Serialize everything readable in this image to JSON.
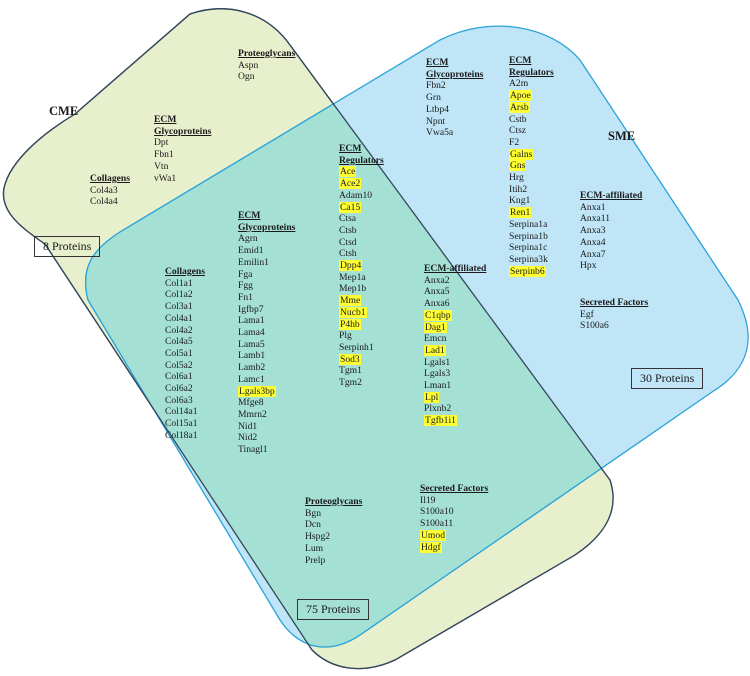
{
  "diagram": {
    "labels": {
      "left": "CME",
      "right": "SME"
    },
    "counts": {
      "left_only": "8 Proteins",
      "right_only": "30 Proteins",
      "shared": "75 Proteins"
    },
    "colors": {
      "left_fill": "#e7efcc",
      "right_fill": "#bfe5f7",
      "overlap_fill": "#a5e0d5",
      "left_stroke": "#33475d",
      "right_stroke": "#29a3d8",
      "highlight": "#ffff33"
    }
  },
  "cme_only": {
    "proteoglycans": {
      "title": "Proteoglycans",
      "items": [
        "Aspn",
        "Ogn"
      ]
    },
    "glycoproteins": {
      "title": [
        "ECM",
        "Glycoproteins"
      ],
      "items": [
        "Dpt",
        "Fbn1",
        "Vtn",
        "vWa1"
      ]
    },
    "collagens": {
      "title": "Collagens",
      "items": [
        "Col4a3",
        "Col4a4"
      ]
    }
  },
  "sme_only": {
    "glycoproteins": {
      "title": [
        "ECM",
        "Glycoproteins"
      ],
      "items": [
        "Fbn2",
        "Grn",
        "Ltbp4",
        "Npnt",
        "Vwa5a"
      ]
    },
    "regulators": {
      "title": [
        "ECM",
        "Regulators"
      ],
      "items": [
        {
          "t": "A2m",
          "h": false
        },
        {
          "t": "Apoe",
          "h": true
        },
        {
          "t": "Arsb",
          "h": true
        },
        {
          "t": "Cstb",
          "h": false
        },
        {
          "t": "Ctsz",
          "h": false
        },
        {
          "t": "F2",
          "h": false
        },
        {
          "t": "Galns",
          "h": true
        },
        {
          "t": "Gns",
          "h": true
        },
        {
          "t": "Hrg",
          "h": false
        },
        {
          "t": "Itih2",
          "h": false
        },
        {
          "t": "Kng1",
          "h": false
        },
        {
          "t": "Ren1",
          "h": true
        },
        {
          "t": "Serpina1a",
          "h": false
        },
        {
          "t": "Serpina1b",
          "h": false
        },
        {
          "t": "Serpina1c",
          "h": false
        },
        {
          "t": "Serpina3k",
          "h": false
        },
        {
          "t": "Serpinb6",
          "h": true
        }
      ]
    },
    "affiliated": {
      "title": "ECM-affiliated",
      "items": [
        "Anxa1",
        "Anxa11",
        "Anxa3",
        "Anxa4",
        "Anxa7",
        "Hpx"
      ]
    },
    "secreted": {
      "title": "Secreted Factors",
      "items": [
        "Egf",
        "S100a6"
      ]
    }
  },
  "shared": {
    "collagens": {
      "title": "Collagens",
      "items": [
        "Col1a1",
        "Col1a2",
        "Col3a1",
        "Col4a1",
        "Col4a2",
        "Col4a5",
        "Col5a1",
        "Col5a2",
        "Col6a1",
        "Col6a2",
        "Col6a3",
        "Col14a1",
        "Col15a1",
        "Col18a1"
      ]
    },
    "glycoproteins": {
      "title": [
        "ECM",
        "Glycoproteins"
      ],
      "items": [
        {
          "t": "Agrn",
          "h": false
        },
        {
          "t": "Emid1",
          "h": false
        },
        {
          "t": "Emilin1",
          "h": false
        },
        {
          "t": "Fga",
          "h": false
        },
        {
          "t": "Fgg",
          "h": false
        },
        {
          "t": "Fn1",
          "h": false
        },
        {
          "t": "Igfbp7",
          "h": false
        },
        {
          "t": "Lama1",
          "h": false
        },
        {
          "t": "Lama4",
          "h": false
        },
        {
          "t": "Lama5",
          "h": false
        },
        {
          "t": "Lamb1",
          "h": false
        },
        {
          "t": "Lamb2",
          "h": false
        },
        {
          "t": "Lamc1",
          "h": false
        },
        {
          "t": "Lgals3bp",
          "h": true
        },
        {
          "t": "Mfge8",
          "h": false
        },
        {
          "t": "Mmrn2",
          "h": false
        },
        {
          "t": "Nid1",
          "h": false
        },
        {
          "t": "Nid2",
          "h": false
        },
        {
          "t": "Tinagl1",
          "h": false
        }
      ]
    },
    "regulators": {
      "title": [
        "ECM",
        "Regulators"
      ],
      "items": [
        {
          "t": "Ace",
          "h": true
        },
        {
          "t": "Ace2",
          "h": true
        },
        {
          "t": "Adam10",
          "h": false
        },
        {
          "t": "Ca15",
          "h": true
        },
        {
          "t": "Ctsa",
          "h": false
        },
        {
          "t": "Ctsb",
          "h": false
        },
        {
          "t": "Ctsd",
          "h": false
        },
        {
          "t": "Ctsh",
          "h": false
        },
        {
          "t": "Dpp4",
          "h": true
        },
        {
          "t": "Mep1a",
          "h": false
        },
        {
          "t": "Mep1b",
          "h": false
        },
        {
          "t": "Mme",
          "h": true
        },
        {
          "t": "Nucb1",
          "h": true
        },
        {
          "t": "P4hb",
          "h": true
        },
        {
          "t": "Plg",
          "h": false
        },
        {
          "t": "Serpinh1",
          "h": false
        },
        {
          "t": "Sod3",
          "h": true
        },
        {
          "t": "Tgm1",
          "h": false
        },
        {
          "t": "Tgm2",
          "h": false
        }
      ]
    },
    "affiliated": {
      "title": "ECM-affiliated",
      "items": [
        {
          "t": "Anxa2",
          "h": false
        },
        {
          "t": "Anxa5",
          "h": false
        },
        {
          "t": "Anxa6",
          "h": false
        },
        {
          "t": "C1qbp",
          "h": true
        },
        {
          "t": "Dag1",
          "h": true
        },
        {
          "t": "Emcn",
          "h": false
        },
        {
          "t": "Lad1",
          "h": true
        },
        {
          "t": "Lgals1",
          "h": false
        },
        {
          "t": "Lgals3",
          "h": false
        },
        {
          "t": "Lman1",
          "h": false
        },
        {
          "t": "Lpl",
          "h": true
        },
        {
          "t": "Plxnb2",
          "h": false
        },
        {
          "t": "Tgfb1i1",
          "h": true
        }
      ]
    },
    "proteoglycans": {
      "title": "Proteoglycans",
      "items": [
        "Bgn",
        "Dcn",
        "Hspg2",
        "Lum",
        "Prelp"
      ]
    },
    "secreted": {
      "title": "Secreted Factors",
      "items": [
        {
          "t": "Il19",
          "h": false
        },
        {
          "t": "S100a10",
          "h": false
        },
        {
          "t": "S100a11",
          "h": false
        },
        {
          "t": "Umod",
          "h": true
        },
        {
          "t": "Hdgf",
          "h": true
        }
      ]
    }
  }
}
